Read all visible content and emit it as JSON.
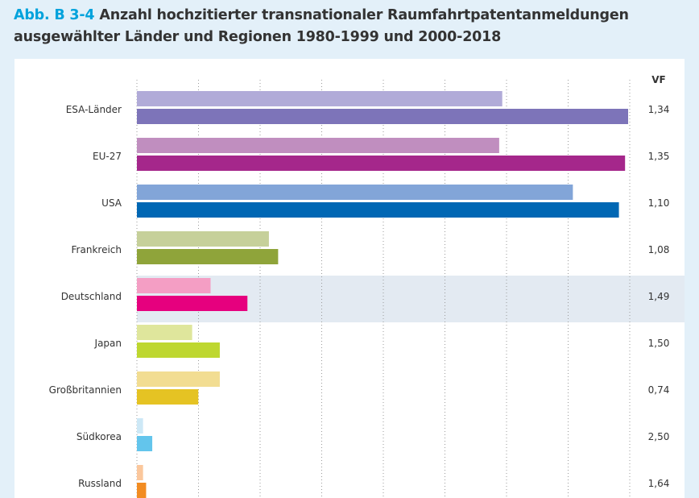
{
  "figure": {
    "number": "Abb. B 3-4",
    "title_line1": "Anzahl hochzitierter transnationaler Raumfahrtpatentanmeldungen",
    "title_line2": "ausgewählter Länder und Regionen 1980-1999 und 2000-2018"
  },
  "chart_data": {
    "type": "bar",
    "orientation": "horizontal",
    "value_column_header": "VF",
    "categories": [
      "ESA-Länder",
      "EU-27",
      "USA",
      "Frankreich",
      "Deutschland",
      "Japan",
      "Großbritannien",
      "Südkorea",
      "Russland"
    ],
    "series": [
      {
        "values": [
          119,
          118,
          142,
          43,
          24,
          18,
          27,
          2,
          2
        ]
      },
      {
        "values": [
          160,
          159,
          157,
          46,
          36,
          27,
          20,
          5,
          3
        ]
      }
    ],
    "vf": [
      "1,34",
      "1,35",
      "1,10",
      "1,08",
      "1,49",
      "1,50",
      "0,74",
      "2,50",
      "1,64"
    ],
    "highlight": "Deutschland",
    "grid": true,
    "xlim": [
      0,
      160
    ],
    "colors": [
      {
        "light": "#b1abd8",
        "dark": "#7d74b9"
      },
      {
        "light": "#c08ebf",
        "dark": "#a5278b"
      },
      {
        "light": "#82a5d8",
        "dark": "#0067b4"
      },
      {
        "light": "#c6d09a",
        "dark": "#8fa43a"
      },
      {
        "light": "#f49ec4",
        "dark": "#e6007e"
      },
      {
        "light": "#dfe69c",
        "dark": "#bed730"
      },
      {
        "light": "#f2dd92",
        "dark": "#e5c323"
      },
      {
        "light": "#cde8f6",
        "dark": "#63c5ec"
      },
      {
        "light": "#fbc79c",
        "dark": "#f28c22"
      }
    ],
    "highlight_color": "#e3eaf2"
  }
}
